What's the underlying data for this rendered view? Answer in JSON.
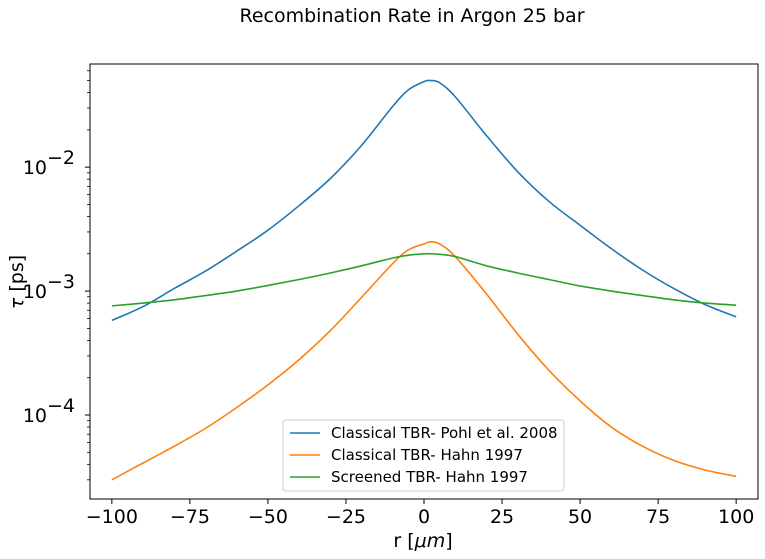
{
  "chart_data": {
    "type": "line",
    "title": "Recombination Rate in Argon 25 bar",
    "xlabel_main": "r [",
    "xlabel_unit": "μm",
    "xlabel_end": "]",
    "ylabel_symbol": "τ",
    "ylabel_unit": " [ps]",
    "xlim": [
      -107,
      107
    ],
    "ylim": [
      2.1e-05,
      0.068
    ],
    "yscale": "log",
    "grid": false,
    "legend_position": "lower center",
    "x_ticks": [
      -100,
      -75,
      -50,
      -25,
      0,
      25,
      50,
      75,
      100
    ],
    "x_tick_labels": [
      "−100",
      "−75",
      "−50",
      "−25",
      "0",
      "25",
      "50",
      "75",
      "100"
    ],
    "y_ticks": [
      {
        "value": 0.0001,
        "base": "10",
        "exp": "−4"
      },
      {
        "value": 0.001,
        "base": "10",
        "exp": "−3"
      },
      {
        "value": 0.01,
        "base": "10",
        "exp": "−2"
      }
    ],
    "x": [
      -100,
      -90,
      -80,
      -70,
      -60,
      -50,
      -40,
      -30,
      -20,
      -10,
      -5,
      0,
      2,
      5,
      10,
      20,
      30,
      40,
      50,
      60,
      70,
      80,
      90,
      100
    ],
    "series": [
      {
        "name": "Classical TBR- Pohl et al. 2008",
        "color": "#1f77b4",
        "values": [
          0.00058,
          0.00075,
          0.00105,
          0.00145,
          0.0021,
          0.0031,
          0.0049,
          0.0081,
          0.015,
          0.031,
          0.042,
          0.049,
          0.05,
          0.048,
          0.037,
          0.018,
          0.0092,
          0.0053,
          0.0034,
          0.0022,
          0.00148,
          0.00105,
          0.00078,
          0.00062
        ]
      },
      {
        "name": "Classical TBR- Hahn 1997",
        "color": "#ff7f0e",
        "values": [
          3e-05,
          4.1e-05,
          5.6e-05,
          7.8e-05,
          0.000115,
          0.000175,
          0.00028,
          0.00048,
          0.00089,
          0.00167,
          0.00215,
          0.0024,
          0.0025,
          0.0024,
          0.0019,
          0.00095,
          0.00045,
          0.00023,
          0.00013,
          8e-05,
          5.6e-05,
          4.3e-05,
          3.6e-05,
          3.2e-05
        ]
      },
      {
        "name": "Screened TBR- Hahn 1997",
        "color": "#2ca02c",
        "values": [
          0.00076,
          0.0008,
          0.00085,
          0.00092,
          0.001,
          0.00111,
          0.00124,
          0.0014,
          0.0016,
          0.00185,
          0.00195,
          0.002,
          0.002,
          0.00198,
          0.0019,
          0.0016,
          0.0014,
          0.00124,
          0.0011,
          0.001,
          0.00092,
          0.00085,
          0.0008,
          0.00077
        ]
      }
    ]
  }
}
